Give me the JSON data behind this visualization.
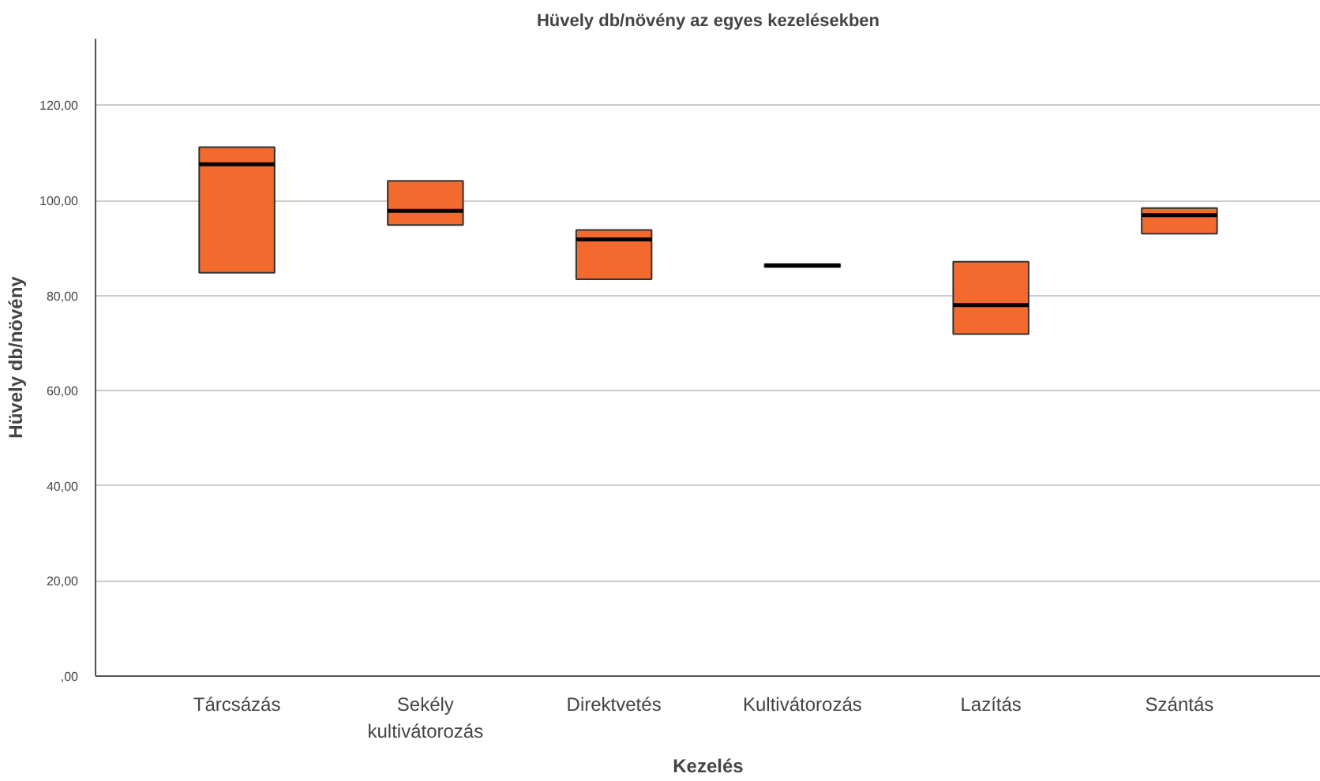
{
  "chart_data": {
    "type": "box",
    "title": "Hüvely db/növény az egyes kezelésekben",
    "xlabel": "Kezelés",
    "ylabel": "Hüvely db/növény",
    "categories": [
      "Tárcsázás",
      "Sekély\nkultivátorozás",
      "Direktvetés",
      "Kultivátorozás",
      "Lazítás",
      "Szántás"
    ],
    "color": "#f26a2e",
    "boxes": [
      {
        "low": 84.8,
        "q1": 84.8,
        "median": 107.6,
        "q3": 111.2,
        "high": 111.2
      },
      {
        "low": 94.8,
        "q1": 94.8,
        "median": 97.8,
        "q3": 104.1,
        "high": 104.1
      },
      {
        "low": 83.4,
        "q1": 83.4,
        "median": 91.8,
        "q3": 93.8,
        "high": 93.8
      },
      {
        "low": 86.0,
        "q1": 86.0,
        "median": 86.3,
        "q3": 86.6,
        "high": 86.6
      },
      {
        "low": 71.9,
        "q1": 71.9,
        "median": 78.0,
        "q3": 87.1,
        "high": 87.1
      },
      {
        "low": 93.0,
        "q1": 93.0,
        "median": 96.9,
        "q3": 98.4,
        "high": 98.4
      }
    ],
    "ylim": [
      0,
      134
    ],
    "yticks": [
      {
        "value": 0,
        "label": ",00"
      },
      {
        "value": 20,
        "label": "20,00"
      },
      {
        "value": 40,
        "label": "40,00"
      },
      {
        "value": 60,
        "label": "60,00"
      },
      {
        "value": 80,
        "label": "80,00"
      },
      {
        "value": 100,
        "label": "100,00"
      },
      {
        "value": 120,
        "label": "120,00"
      }
    ],
    "grid": "y"
  }
}
